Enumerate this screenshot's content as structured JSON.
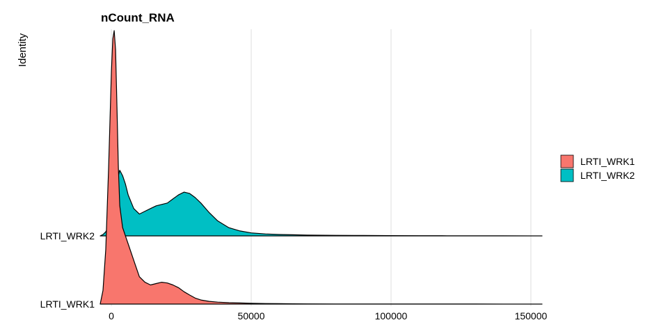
{
  "chart_data": {
    "type": "ridgeline",
    "title": "nCount_RNA",
    "xlabel": "",
    "ylabel": "Identity",
    "xlim": [
      -4000,
      154000
    ],
    "xticks": [
      0,
      50000,
      100000,
      150000
    ],
    "xtick_labels": [
      "0",
      "50000",
      "100000",
      "150000"
    ],
    "grid": "vertical",
    "legend": {
      "placement": "right",
      "entries": [
        {
          "label": "LRTI_WRK1",
          "color": "#F8766D"
        },
        {
          "label": "LRTI_WRK2",
          "color": "#00BFC4"
        }
      ]
    },
    "series": [
      {
        "name": "LRTI_WRK1",
        "color": "#F8766D",
        "x": [
          -4000,
          -3000,
          -2000,
          -1000,
          0,
          500,
          1000,
          1500,
          2000,
          2500,
          3000,
          4000,
          5000,
          6000,
          8000,
          10000,
          12000,
          14000,
          16000,
          18000,
          20000,
          22000,
          24000,
          26000,
          28000,
          30000,
          32000,
          35000,
          38000,
          42000,
          46000,
          50000,
          55000,
          60000,
          65000,
          70000,
          80000,
          90000,
          100000,
          110000,
          120000,
          130000,
          140000,
          154000
        ],
        "y": [
          0,
          0.05,
          0.2,
          0.5,
          0.85,
          0.97,
          1.0,
          0.93,
          0.72,
          0.5,
          0.36,
          0.28,
          0.25,
          0.22,
          0.16,
          0.1,
          0.08,
          0.07,
          0.075,
          0.08,
          0.077,
          0.07,
          0.06,
          0.045,
          0.033,
          0.022,
          0.015,
          0.01,
          0.007,
          0.005,
          0.004,
          0.003,
          0.002,
          0.0015,
          0.001,
          0.0008,
          0.0006,
          0.0005,
          0.0004,
          0.0003,
          0.0002,
          0.0002,
          0.0001,
          0
        ]
      },
      {
        "name": "LRTI_WRK2",
        "color": "#00BFC4",
        "x": [
          -4000,
          -3000,
          -2000,
          -1000,
          0,
          500,
          1000,
          1500,
          2000,
          2500,
          3000,
          4000,
          5000,
          6000,
          8000,
          10000,
          12000,
          14000,
          16000,
          18000,
          20000,
          22000,
          24000,
          26000,
          28000,
          30000,
          32000,
          35000,
          38000,
          42000,
          46000,
          50000,
          55000,
          60000,
          65000,
          70000,
          80000,
          90000,
          100000,
          110000,
          120000,
          130000,
          140000,
          154000
        ],
        "y": [
          0,
          0.005,
          0.015,
          0.035,
          0.06,
          0.08,
          0.1,
          0.13,
          0.17,
          0.22,
          0.24,
          0.22,
          0.19,
          0.15,
          0.1,
          0.08,
          0.09,
          0.1,
          0.11,
          0.115,
          0.12,
          0.135,
          0.15,
          0.16,
          0.155,
          0.14,
          0.12,
          0.085,
          0.055,
          0.03,
          0.018,
          0.011,
          0.007,
          0.005,
          0.004,
          0.003,
          0.002,
          0.0015,
          0.001,
          0.0008,
          0.0005,
          0.0004,
          0.0003,
          0
        ]
      }
    ]
  }
}
